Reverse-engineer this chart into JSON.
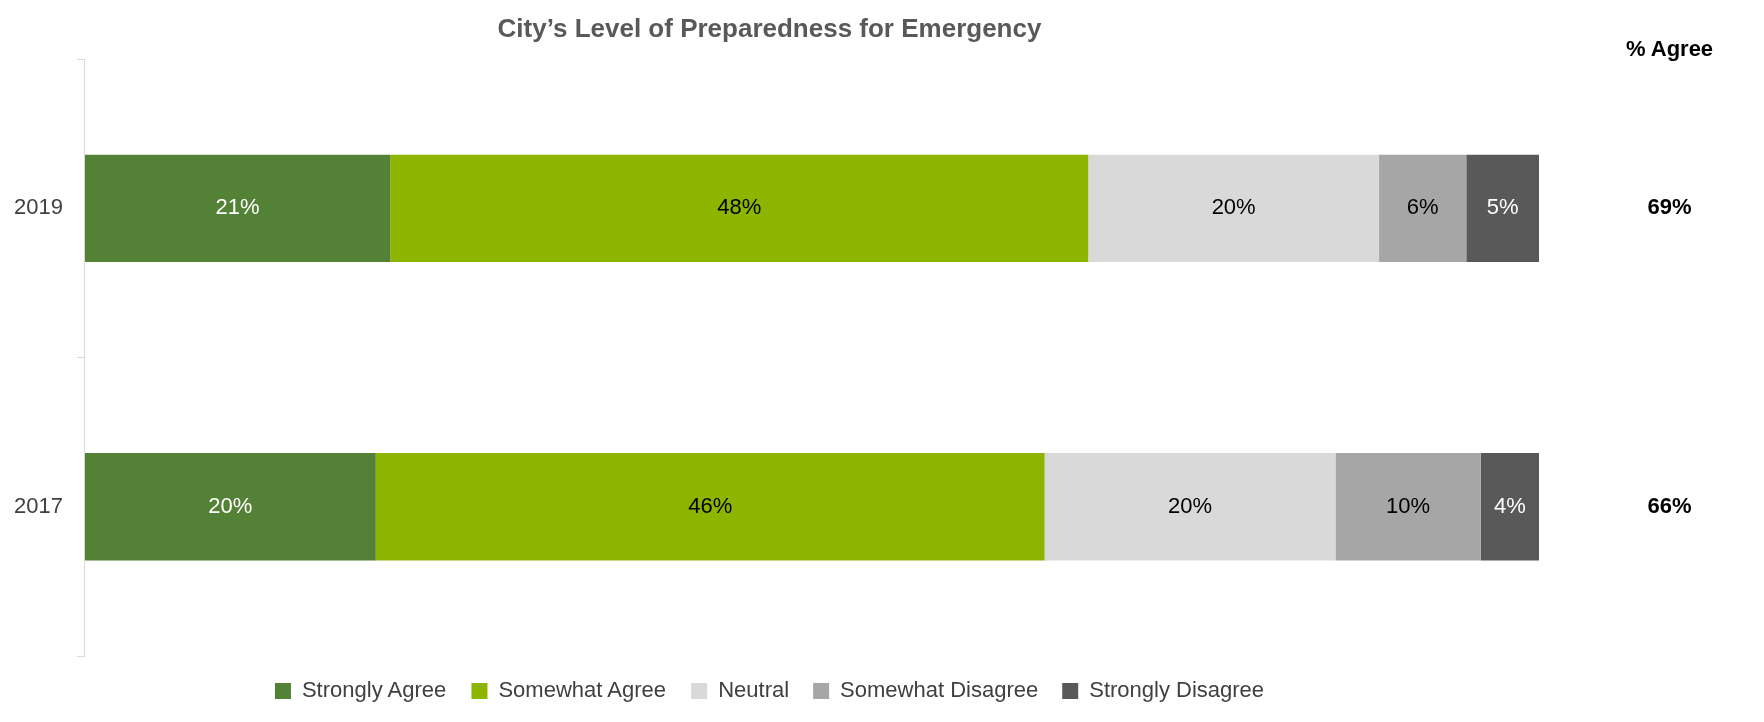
{
  "chart_data": {
    "type": "bar",
    "orientation": "horizontal",
    "stacked": true,
    "title": "City’s Level of Preparedness for Emergency",
    "categories": [
      "2019",
      "2017"
    ],
    "series": [
      {
        "name": "Strongly Agree",
        "color": "#538135",
        "values": [
          21,
          20
        ],
        "value_labels": [
          "21%",
          "20%"
        ]
      },
      {
        "name": "Somewhat Agree",
        "color": "#8db500",
        "values": [
          48,
          46
        ],
        "value_labels": [
          "48%",
          "46%"
        ]
      },
      {
        "name": "Neutral",
        "color": "#d9d9d9",
        "values": [
          20,
          20
        ],
        "value_labels": [
          "20%",
          "20%"
        ]
      },
      {
        "name": "Somewhat Disagree",
        "color": "#a6a6a6",
        "values": [
          6,
          10
        ],
        "value_labels": [
          "6%",
          "10%"
        ]
      },
      {
        "name": "Strongly Disagree",
        "color": "#595959",
        "values": [
          5,
          4
        ],
        "value_labels": [
          "5%",
          "4%"
        ]
      }
    ],
    "annotations": [
      "% Agree",
      "69%",
      "66%"
    ],
    "legend": "bottom",
    "grid": false
  }
}
